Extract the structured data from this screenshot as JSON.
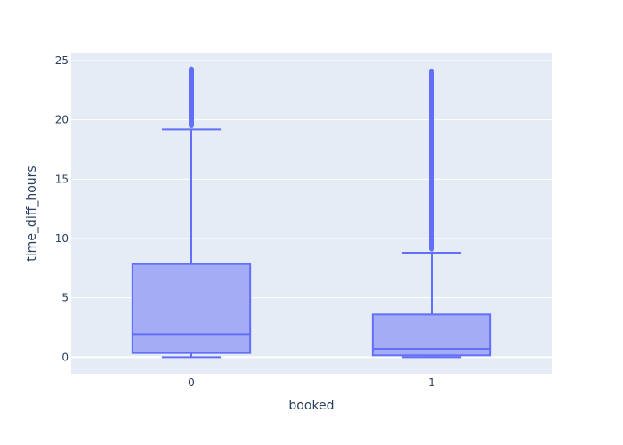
{
  "chart_data": {
    "type": "box",
    "title": "",
    "xlabel": "booked",
    "ylabel": "time_diff_hours",
    "categories": [
      "0",
      "1"
    ],
    "ylim": [
      -1.4,
      25.6
    ],
    "yticks": [
      0,
      5,
      10,
      15,
      20,
      25
    ],
    "grid": true,
    "series": [
      {
        "boxes": [
          {
            "category": "0",
            "lower_fence": 0.0,
            "q1": 0.35,
            "median": 1.95,
            "q3": 7.85,
            "upper_fence": 19.2,
            "outliers_from": 19.3,
            "outliers_to": 24.5
          },
          {
            "category": "1",
            "lower_fence": 0.0,
            "q1": 0.15,
            "median": 0.7,
            "q3": 3.6,
            "upper_fence": 8.8,
            "outliers_from": 8.9,
            "outliers_to": 24.3
          }
        ]
      }
    ],
    "colors": {
      "box_fill": "#a3acf5",
      "box_line": "#636efa",
      "plot_bg": "#e5ecf6",
      "grid": "#ffffff",
      "text": "#2a3f5f"
    }
  }
}
